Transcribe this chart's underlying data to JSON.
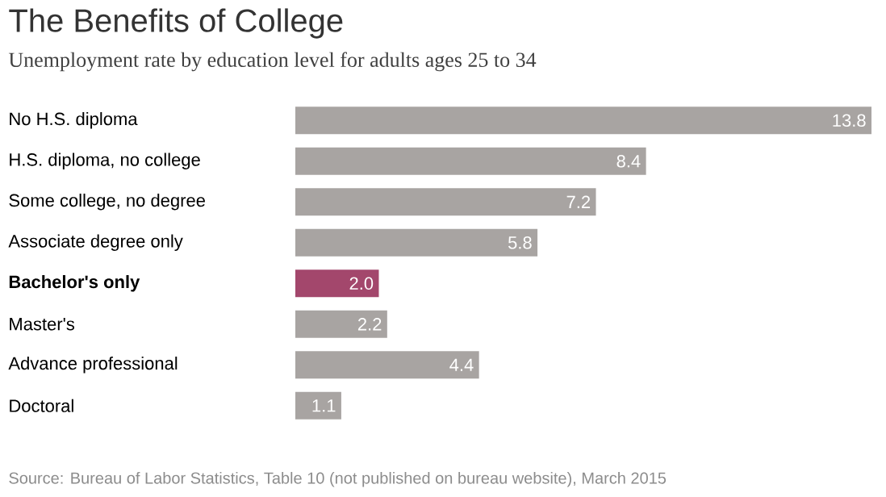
{
  "chart_data": {
    "type": "bar",
    "orientation": "horizontal",
    "title": "The Benefits of College",
    "subtitle": "Unemployment rate by education level for adults ages 25 to 34",
    "categories": [
      "No H.S. diploma",
      "H.S. diploma, no college",
      "Some college, no degree",
      "Associate degree only",
      "**Bachelor's only**",
      "Master's",
      "Advance professional",
      "Doctoral"
    ],
    "values": [
      13.8,
      8.4,
      7.2,
      5.8,
      2.0,
      2.2,
      4.4,
      1.1
    ],
    "colors": [
      "#a8a4a2",
      "#a8a4a2",
      "#a8a4a2",
      "#a8a4a2",
      "#a3476c",
      "#a8a4a2",
      "#a8a4a2",
      "#a8a4a2"
    ],
    "value_labels": [
      "13.8",
      "8.4",
      "7.2",
      "5.8",
      "2.0",
      "2.2",
      "4.4",
      "1.1"
    ],
    "annotations": [
      "Source: Bureau of Labor Statistics, Table 10 (not published on bureau website), March 2015"
    ]
  }
}
